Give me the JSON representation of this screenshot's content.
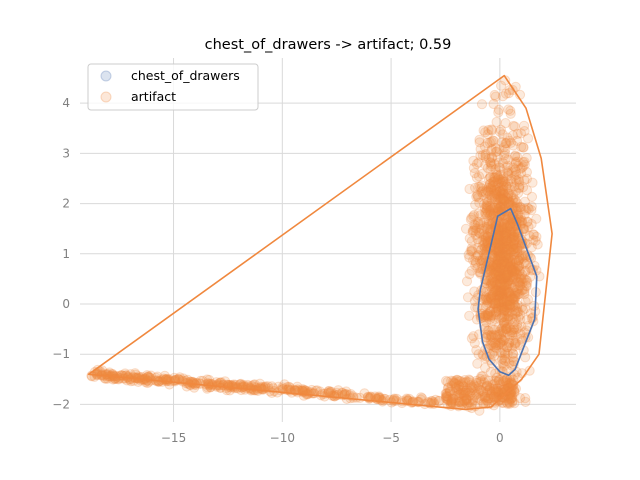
{
  "chart_data": {
    "type": "scatter",
    "title": "chest_of_drawers -> artifact; 0.59",
    "xlabel": "",
    "ylabel": "",
    "xlim": [
      -19.3,
      3.5
    ],
    "ylim": [
      -2.35,
      4.9
    ],
    "x_ticks": [
      -15,
      -10,
      -5,
      0
    ],
    "x_tick_labels": [
      "−15",
      "−10",
      "−5",
      "0"
    ],
    "y_ticks": [
      -2,
      -1,
      0,
      1,
      2,
      3,
      4
    ],
    "y_tick_labels": [
      "−2",
      "−1",
      "0",
      "1",
      "2",
      "3",
      "4"
    ],
    "grid": true,
    "legend": {
      "placement": "top-left",
      "entries": [
        {
          "label": "chest_of_drawers",
          "color": "#4c72b0"
        },
        {
          "label": "artifact",
          "color": "#f0883e"
        }
      ]
    },
    "series": [
      {
        "name": "chest_of_drawers",
        "color": "#4c72b0",
        "hull": [
          [
            -0.1,
            1.75
          ],
          [
            0.5,
            1.9
          ],
          [
            0.8,
            1.6
          ],
          [
            1.7,
            0.55
          ],
          [
            1.6,
            -0.3
          ],
          [
            0.7,
            -1.3
          ],
          [
            0.4,
            -1.42
          ],
          [
            0.0,
            -1.35
          ],
          [
            -0.5,
            -1.1
          ],
          [
            -0.8,
            -0.75
          ],
          [
            -1.0,
            -0.1
          ],
          [
            -0.9,
            0.28
          ]
        ]
      },
      {
        "name": "artifact",
        "color": "#f0883e",
        "hull": [
          [
            0.2,
            4.55
          ],
          [
            1.2,
            3.9
          ],
          [
            1.9,
            2.9
          ],
          [
            2.4,
            1.4
          ],
          [
            1.8,
            -1.0
          ],
          [
            1.0,
            -1.5
          ],
          [
            -0.4,
            -2.05
          ],
          [
            -1.6,
            -2.1
          ],
          [
            -18.9,
            -1.4
          ]
        ],
        "scatter_regions": {
          "main_cloud": {
            "x_center": 0.1,
            "y_center": 0.9,
            "x_spread": 1.0,
            "y_spread": 1.3,
            "y_range": [
              -2.0,
              4.5
            ]
          },
          "tail": {
            "x_range": [
              -18.9,
              -0.2
            ],
            "y_start": -1.4,
            "y_end": -2.05
          }
        }
      }
    ]
  }
}
